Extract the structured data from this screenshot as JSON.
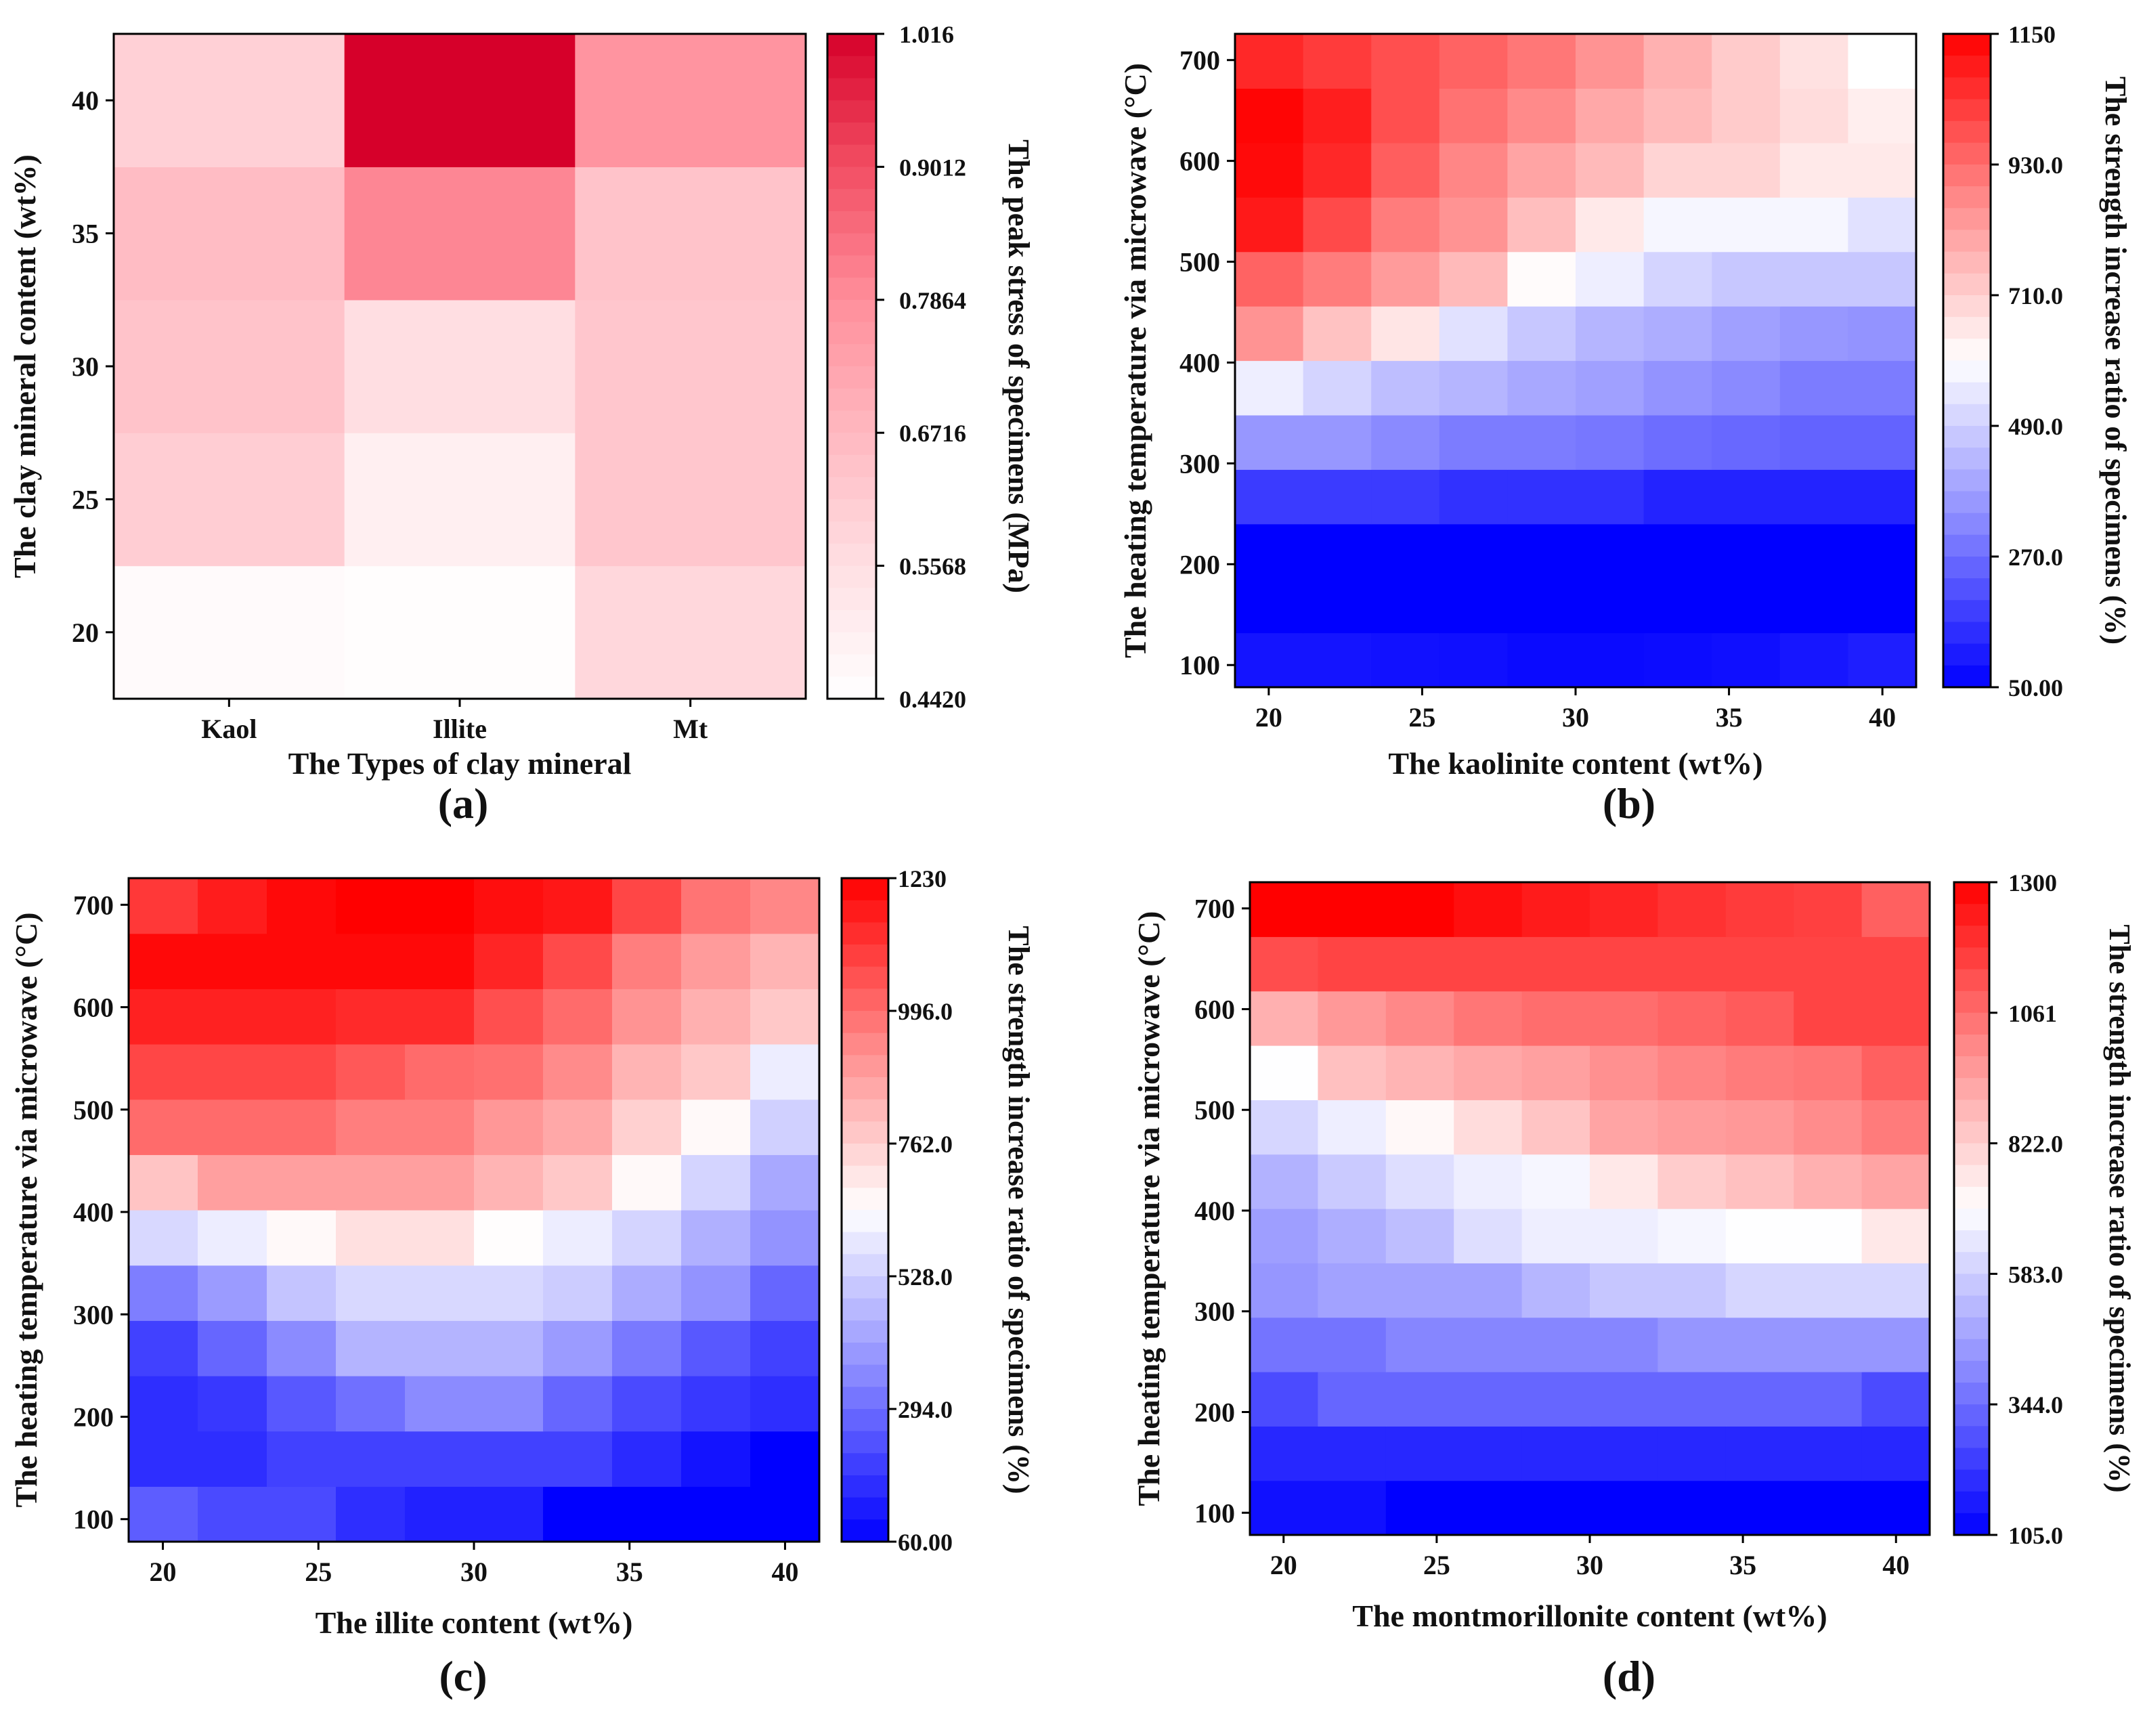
{
  "chart_data": [
    {
      "panel_label": "(a)",
      "type": "heatmap",
      "xlabel": "The Types of clay mineral",
      "ylabel": "The clay mineral content (wt%)",
      "colorbar_label": "The peak stress of specimens (MPa)",
      "x_tick_labels": [
        "Kaol",
        "Illite",
        "Mt"
      ],
      "y_tick_labels": [
        "20",
        "25",
        "30",
        "35",
        "40"
      ],
      "y_ticks": [
        20,
        25,
        30,
        35,
        40
      ],
      "y_range": [
        17.5,
        42.5
      ],
      "colorbar_range": [
        0.442,
        1.016
      ],
      "colorbar_ticks": [
        1.016,
        0.9012,
        0.7864,
        0.6716,
        0.5568,
        0.442
      ],
      "colorbar_tick_labels": [
        "1.016",
        "0.9012",
        "0.7864",
        "0.6716",
        "0.5568",
        "0.4420"
      ],
      "colormap": "white-red",
      "colormap_colors": [
        "#ffffff",
        "#ffdfe3",
        "#ffb8c0",
        "#ff8e9b",
        "#f24e63",
        "#d6002a"
      ],
      "values": [
        [
          0.46,
          0.45,
          0.58
        ],
        [
          0.61,
          0.5,
          0.63
        ],
        [
          0.64,
          0.56,
          0.63
        ],
        [
          0.66,
          0.8,
          0.64
        ],
        [
          0.6,
          1.016,
          0.77
        ]
      ]
    },
    {
      "panel_label": "(b)",
      "type": "heatmap",
      "xlabel": "The kaolinite content (wt%)",
      "ylabel": "The heating temperature via microwave (°C)",
      "colorbar_label": "The strength increase ratio of specimens (%)",
      "x_ticks": [
        20,
        25,
        30,
        35,
        40
      ],
      "y_ticks": [
        100,
        200,
        300,
        400,
        500,
        600,
        700
      ],
      "x_range": [
        18.9,
        41.1
      ],
      "y_range": [
        78,
        726
      ],
      "x": [
        20,
        22.2,
        24.4,
        26.7,
        28.9,
        31.1,
        33.3,
        35.6,
        37.8,
        40
      ],
      "y": [
        100,
        154,
        208,
        262,
        316,
        370,
        424,
        478,
        532,
        586,
        640,
        694
      ],
      "colorbar_range": [
        50,
        1150
      ],
      "colorbar_ticks": [
        1150,
        930,
        710,
        490,
        270,
        50
      ],
      "colorbar_tick_labels": [
        "1150",
        "930.0",
        "710.0",
        "490.0",
        "270.0",
        "50.00"
      ],
      "colormap": "blue-white-red",
      "colormap_colors": [
        "#0000ff",
        "#8888ff",
        "#ffffff",
        "#ff8888",
        "#ff0000"
      ],
      "values": [
        [
          90,
          90,
          85,
          80,
          70,
          70,
          75,
          80,
          95,
          110
        ],
        [
          50,
          50,
          50,
          50,
          50,
          50,
          50,
          50,
          50,
          50
        ],
        [
          50,
          50,
          50,
          50,
          50,
          50,
          50,
          50,
          50,
          50
        ],
        [
          170,
          170,
          170,
          150,
          150,
          150,
          120,
          120,
          120,
          120
        ],
        [
          360,
          360,
          330,
          300,
          300,
          290,
          270,
          260,
          250,
          250
        ],
        [
          560,
          500,
          450,
          430,
          400,
          380,
          350,
          330,
          300,
          300
        ],
        [
          850,
          740,
          660,
          530,
          470,
          430,
          410,
          380,
          360,
          350
        ],
        [
          950,
          900,
          830,
          760,
          610,
          560,
          500,
          470,
          470,
          470
        ],
        [
          1100,
          1000,
          900,
          850,
          750,
          650,
          580,
          580,
          580,
          530
        ],
        [
          1130,
          1070,
          960,
          880,
          810,
          760,
          700,
          700,
          650,
          650
        ],
        [
          1140,
          1090,
          990,
          920,
          870,
          800,
          760,
          720,
          680,
          640
        ],
        [
          1070,
          1030,
          990,
          950,
          910,
          850,
          780,
          720,
          670,
          600
        ]
      ]
    },
    {
      "panel_label": "(c)",
      "type": "heatmap",
      "xlabel": "The  illite content (wt%)",
      "ylabel": "The heating temperature via microwave (°C)",
      "colorbar_label": "The strength increase ratio of specimens (%)",
      "x_ticks": [
        20,
        25,
        30,
        35,
        40
      ],
      "y_ticks": [
        100,
        200,
        300,
        400,
        500,
        600,
        700
      ],
      "x_range": [
        18.9,
        41.1
      ],
      "y_range": [
        78,
        726
      ],
      "x": [
        20,
        22.2,
        24.4,
        26.7,
        28.9,
        31.1,
        33.3,
        35.6,
        37.8,
        40
      ],
      "y": [
        100,
        154,
        208,
        262,
        316,
        370,
        424,
        478,
        532,
        586,
        640,
        694
      ],
      "colorbar_range": [
        60,
        1230
      ],
      "colorbar_ticks": [
        1230,
        996,
        762,
        528,
        294,
        60
      ],
      "colorbar_tick_labels": [
        "1230",
        "996.0",
        "762.0",
        "528.0",
        "294.0",
        "60.00"
      ],
      "colormap": "blue-white-red",
      "colormap_colors": [
        "#0000ff",
        "#8888ff",
        "#ffffff",
        "#ff8888",
        "#ff0000"
      ],
      "values": [
        [
          260,
          220,
          220,
          160,
          130,
          130,
          60,
          60,
          60,
          60
        ],
        [
          160,
          160,
          200,
          200,
          200,
          200,
          200,
          150,
          100,
          60
        ],
        [
          160,
          180,
          250,
          300,
          360,
          360,
          280,
          220,
          180,
          160
        ],
        [
          200,
          280,
          360,
          460,
          460,
          460,
          400,
          320,
          250,
          200
        ],
        [
          330,
          400,
          500,
          550,
          550,
          550,
          520,
          440,
          380,
          280
        ],
        [
          550,
          600,
          660,
          720,
          720,
          650,
          600,
          540,
          450,
          380
        ],
        [
          790,
          880,
          880,
          880,
          880,
          830,
          780,
          660,
          540,
          430
        ],
        [
          1000,
          1000,
          1000,
          960,
          960,
          900,
          860,
          760,
          660,
          530
        ],
        [
          1080,
          1080,
          1080,
          1040,
          1000,
          990,
          930,
          830,
          780,
          600
        ],
        [
          1160,
          1160,
          1160,
          1140,
          1140,
          1060,
          1000,
          910,
          840,
          780
        ],
        [
          1210,
          1210,
          1210,
          1210,
          1210,
          1150,
          1070,
          960,
          890,
          830
        ],
        [
          1110,
          1170,
          1210,
          1230,
          1230,
          1200,
          1180,
          1080,
          980,
          940
        ]
      ]
    },
    {
      "panel_label": "(d)",
      "type": "heatmap",
      "xlabel": "The montmorillonite content (wt%)",
      "ylabel": "The heating temperature via microwave (°C)",
      "colorbar_label": "The strength increase ratio of specimens (%)",
      "x_ticks": [
        20,
        25,
        30,
        35,
        40
      ],
      "y_ticks": [
        100,
        200,
        300,
        400,
        500,
        600,
        700
      ],
      "x_range": [
        18.9,
        41.1
      ],
      "y_range": [
        78,
        726
      ],
      "x": [
        20,
        22.2,
        24.4,
        26.7,
        28.9,
        31.1,
        33.3,
        35.6,
        37.8,
        40
      ],
      "y": [
        100,
        154,
        208,
        262,
        316,
        370,
        424,
        478,
        532,
        586,
        640,
        694
      ],
      "colorbar_range": [
        105,
        1300
      ],
      "colorbar_ticks": [
        1300,
        1061,
        822,
        583,
        344,
        105
      ],
      "colorbar_tick_labels": [
        "1300",
        "1061",
        "822.0",
        "583.0",
        "344.0",
        "105.0"
      ],
      "colormap": "blue-white-red",
      "colormap_colors": [
        "#0000ff",
        "#8888ff",
        "#ffffff",
        "#ff8888",
        "#ff0000"
      ],
      "values": [
        [
          140,
          140,
          105,
          105,
          105,
          105,
          105,
          105,
          105,
          105
        ],
        [
          190,
          190,
          190,
          190,
          190,
          190,
          190,
          190,
          190,
          190
        ],
        [
          270,
          330,
          330,
          330,
          330,
          330,
          330,
          330,
          330,
          270
        ],
        [
          360,
          360,
          400,
          400,
          400,
          400,
          440,
          440,
          440,
          440
        ],
        [
          440,
          470,
          470,
          470,
          520,
          560,
          560,
          600,
          600,
          600
        ],
        [
          460,
          500,
          540,
          620,
          660,
          660,
          680,
          700,
          700,
          760
        ],
        [
          510,
          570,
          620,
          660,
          680,
          760,
          830,
          860,
          900,
          930
        ],
        [
          600,
          660,
          720,
          790,
          850,
          930,
          950,
          960,
          990,
          1030
        ],
        [
          700,
          860,
          890,
          920,
          940,
          980,
          1010,
          1030,
          1040,
          1090
        ],
        [
          900,
          960,
          1000,
          1040,
          1060,
          1060,
          1080,
          1100,
          1150,
          1150
        ],
        [
          1130,
          1150,
          1150,
          1150,
          1150,
          1150,
          1150,
          1150,
          1150,
          1150
        ],
        [
          1300,
          1300,
          1300,
          1270,
          1240,
          1220,
          1190,
          1170,
          1160,
          1090
        ]
      ]
    }
  ]
}
